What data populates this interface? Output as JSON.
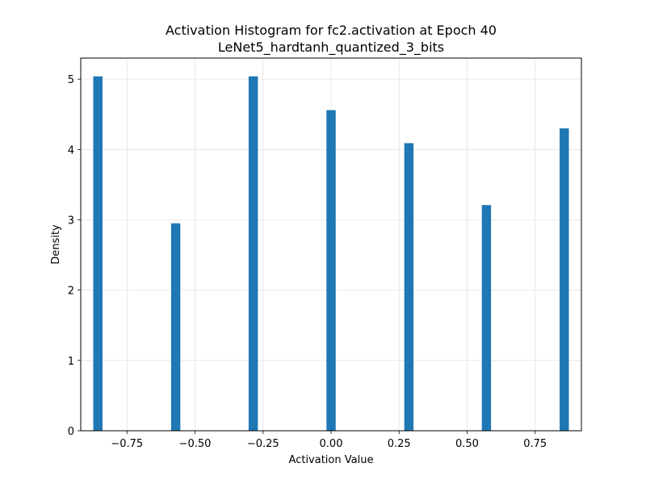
{
  "chart_data": {
    "type": "bar",
    "title": "Activation Histogram for fc2.activation at Epoch 40",
    "subtitle": "LeNet5_hardtanh_quantized_3_bits",
    "xlabel": "Activation Value",
    "ylabel": "Density",
    "xlim": [
      -0.92,
      0.92
    ],
    "ylim": [
      0,
      5.3
    ],
    "xticks": [
      -0.75,
      -0.5,
      -0.25,
      0.0,
      0.25,
      0.5,
      0.75
    ],
    "xtick_labels": [
      "−0.75",
      "−0.50",
      "−0.25",
      "0.00",
      "0.25",
      "0.50",
      "0.75"
    ],
    "yticks": [
      0,
      1,
      2,
      3,
      4,
      5
    ],
    "ytick_labels": [
      "0",
      "1",
      "2",
      "3",
      "4",
      "5"
    ],
    "grid": true,
    "color": "#1f77b4",
    "bin_width": 0.034,
    "bars": [
      {
        "x": -0.857,
        "value": 5.04
      },
      {
        "x": -0.571,
        "value": 2.95
      },
      {
        "x": -0.286,
        "value": 5.04
      },
      {
        "x": 0.0,
        "value": 4.56
      },
      {
        "x": 0.286,
        "value": 4.09
      },
      {
        "x": 0.571,
        "value": 3.21
      },
      {
        "x": 0.857,
        "value": 4.3
      }
    ]
  }
}
